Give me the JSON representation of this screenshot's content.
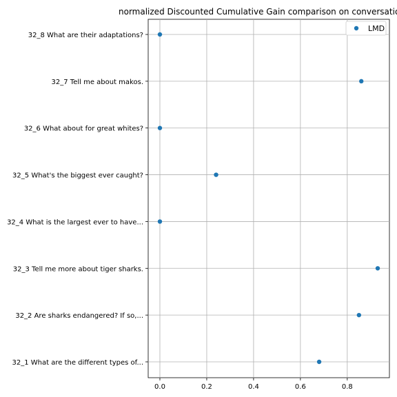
{
  "chart_data": {
    "type": "scatter",
    "title": "normalized Discounted Cumulative Gain comparison on conversatio",
    "xlabel": "",
    "ylabel": "",
    "xlim": [
      -0.05,
      0.98
    ],
    "xticks": [
      0.0,
      0.2,
      0.4,
      0.6,
      0.8
    ],
    "xtick_labels": [
      "0.0",
      "0.2",
      "0.4",
      "0.6",
      "0.8"
    ],
    "grid": true,
    "legend": {
      "position": "top-right",
      "entries": [
        "LMD"
      ]
    },
    "categories": [
      "32_1 What are the different types of...",
      "32_2 Are sharks endangered? If so,...",
      "32_3 Tell me more about tiger sharks.",
      "32_4 What is the largest ever to have...",
      "32_5 What's the biggest ever caught?",
      "32_6 What about for great whites?",
      "32_7 Tell me about makos.",
      "32_8 What are their adaptations?"
    ],
    "series": [
      {
        "name": "LMD",
        "color": "#1f77b4",
        "values": [
          0.68,
          0.85,
          0.93,
          0.0,
          0.24,
          0.0,
          0.86,
          0.0
        ]
      }
    ]
  }
}
